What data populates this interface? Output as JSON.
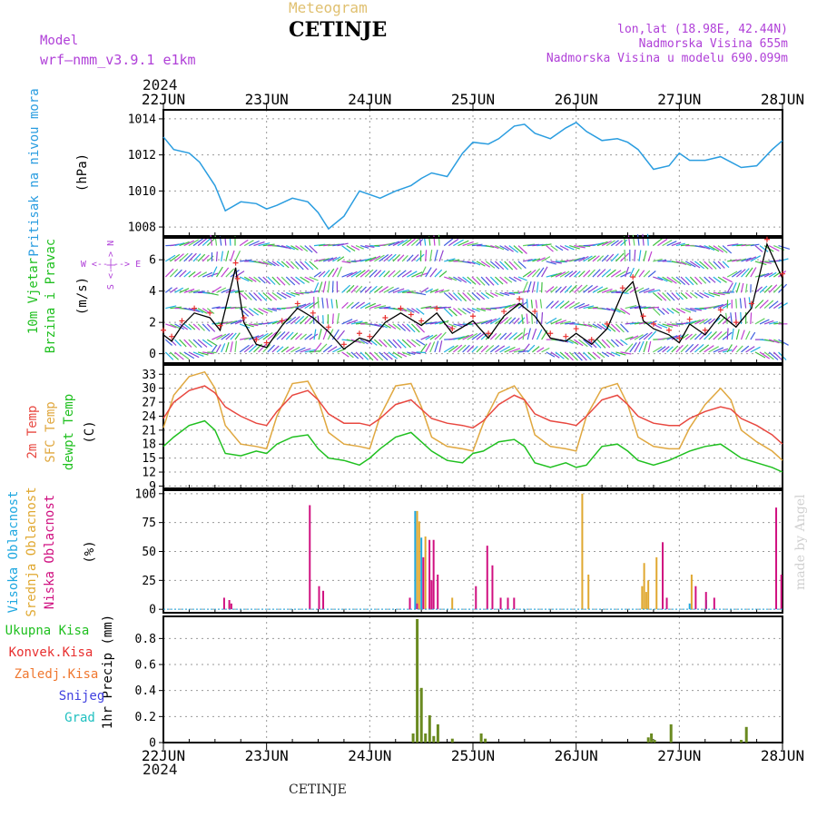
{
  "header": {
    "product": "Meteogram",
    "location": "CETINJE",
    "model_label": "Model",
    "model_name": "wrf–nmm_v3.9.1  e1km",
    "coords": "lon,lat (18.98E, 42.44N)",
    "altitude": "Nadmorska Visina 655m",
    "model_altitude": "Nadmorska Visina u modelu 690.099m"
  },
  "time_axis": {
    "year_label": "2024",
    "ticks": [
      "22JUN",
      "23JUN",
      "24JUN",
      "25JUN",
      "26JUN",
      "27JUN",
      "28JUN"
    ]
  },
  "footer": {
    "location": "CETINJE",
    "credit": "made by Angel"
  },
  "colors": {
    "pressure": "#2a9de0",
    "temp": "#e84840",
    "sfc_temp": "#e0a840",
    "dewpt": "#20c020",
    "high_cloud": "#20a8e0",
    "mid_cloud": "#e0a830",
    "low_cloud": "#d01080",
    "total_precip": "#20c020",
    "conv_precip": "#e83030",
    "frozen_precip": "#f07830",
    "snow": "#4040e0",
    "graupel": "#20c0c0",
    "wind_label": "#20c020",
    "wind_dir": "#b040d8"
  },
  "chart_data": [
    {
      "type": "line",
      "panel": "pressure",
      "ylabel": "Pritisak na nivou mora",
      "unit": "(hPa)",
      "ylim": [
        1007.5,
        1014.5
      ],
      "yticks": [
        1008,
        1010,
        1012,
        1014
      ],
      "grid": true,
      "x_days": [
        0,
        0.1,
        0.25,
        0.35,
        0.5,
        0.6,
        0.75,
        0.9,
        1.0,
        1.1,
        1.25,
        1.4,
        1.5,
        1.6,
        1.75,
        1.9,
        2.0,
        2.1,
        2.25,
        2.4,
        2.5,
        2.6,
        2.75,
        2.9,
        3.0,
        3.15,
        3.25,
        3.4,
        3.5,
        3.6,
        3.75,
        3.9,
        4.0,
        4.1,
        4.25,
        4.4,
        4.5,
        4.6,
        4.75,
        4.9,
        5.0,
        5.1,
        5.25,
        5.4,
        5.5,
        5.6,
        5.75,
        5.9,
        6.0
      ],
      "series": [
        {
          "name": "Pritisak na nivou mora",
          "values": [
            1013.0,
            1012.3,
            1012.1,
            1011.6,
            1010.3,
            1008.9,
            1009.4,
            1009.3,
            1009.0,
            1009.2,
            1009.6,
            1009.4,
            1008.8,
            1007.9,
            1008.6,
            1010.0,
            1009.8,
            1009.6,
            1010.0,
            1010.3,
            1010.7,
            1011.0,
            1010.8,
            1012.1,
            1012.7,
            1012.6,
            1012.9,
            1013.6,
            1013.7,
            1013.2,
            1012.9,
            1013.5,
            1013.8,
            1013.3,
            1012.8,
            1012.9,
            1012.7,
            1012.3,
            1011.2,
            1011.4,
            1012.1,
            1011.7,
            1011.7,
            1011.9,
            1011.6,
            1011.3,
            1011.4,
            1012.3,
            1012.8
          ]
        }
      ]
    },
    {
      "type": "line",
      "panel": "wind",
      "ylabel": "10m Vjetar",
      "ylabel2": "Brzina i Pravac",
      "unit": "(m/s)",
      "direction_legend": "W <--|--> E",
      "direction_legend_v": "S <-|-> N",
      "ylim": [
        -0.6,
        7.4
      ],
      "yticks": [
        0,
        2,
        4,
        6
      ],
      "grid": true,
      "x_days": [
        0,
        0.08,
        0.18,
        0.3,
        0.45,
        0.55,
        0.7,
        0.72,
        0.78,
        0.9,
        1.0,
        1.15,
        1.3,
        1.45,
        1.6,
        1.75,
        1.9,
        2.0,
        2.15,
        2.3,
        2.4,
        2.5,
        2.65,
        2.8,
        3.0,
        3.15,
        3.3,
        3.45,
        3.6,
        3.75,
        3.9,
        4.0,
        4.15,
        4.3,
        4.45,
        4.55,
        4.65,
        4.75,
        4.9,
        5.0,
        5.1,
        5.25,
        5.4,
        5.55,
        5.7,
        5.85,
        6.0
      ],
      "series": [
        {
          "name": "10m Vjetar",
          "values": [
            1.2,
            0.8,
            1.8,
            2.6,
            2.3,
            1.5,
            5.5,
            4.5,
            2.0,
            0.6,
            0.4,
            1.8,
            2.9,
            2.3,
            1.4,
            0.3,
            1.0,
            0.8,
            2.0,
            2.6,
            2.2,
            1.8,
            2.6,
            1.3,
            2.1,
            1.0,
            2.4,
            3.2,
            2.4,
            1.0,
            0.8,
            1.3,
            0.6,
            1.6,
            3.9,
            4.6,
            2.1,
            1.6,
            1.2,
            0.7,
            1.9,
            1.2,
            2.5,
            1.7,
            2.9,
            7.0,
            4.8
          ]
        }
      ]
    },
    {
      "type": "line",
      "panel": "temperature",
      "unit": "(C)",
      "ylim": [
        8.5,
        35
      ],
      "yticks": [
        9,
        12,
        15,
        18,
        21,
        24,
        27,
        30,
        33
      ],
      "grid": true,
      "x_days": [
        0,
        0.1,
        0.25,
        0.4,
        0.5,
        0.6,
        0.75,
        0.9,
        1.0,
        1.1,
        1.25,
        1.4,
        1.5,
        1.6,
        1.75,
        1.9,
        2.0,
        2.1,
        2.25,
        2.4,
        2.5,
        2.6,
        2.75,
        2.9,
        3.0,
        3.1,
        3.25,
        3.4,
        3.5,
        3.6,
        3.75,
        3.9,
        4.0,
        4.1,
        4.25,
        4.4,
        4.5,
        4.6,
        4.75,
        4.9,
        5.0,
        5.1,
        5.25,
        5.4,
        5.5,
        5.6,
        5.75,
        5.9,
        6.0
      ],
      "series": [
        {
          "name": "2m Temp",
          "values": [
            23.5,
            27.0,
            29.5,
            30.5,
            29.0,
            26.0,
            24.0,
            22.5,
            22.0,
            25.0,
            28.5,
            29.5,
            27.5,
            24.5,
            22.5,
            22.5,
            22.0,
            23.5,
            26.5,
            27.5,
            25.5,
            23.5,
            22.5,
            22.0,
            21.5,
            23.0,
            26.5,
            28.5,
            27.5,
            24.5,
            23.0,
            22.5,
            22.0,
            24.0,
            27.5,
            28.5,
            26.5,
            24.0,
            22.5,
            22.0,
            22.0,
            23.5,
            25.0,
            26.0,
            25.5,
            23.5,
            22.0,
            20.0,
            18.0
          ]
        },
        {
          "name": "SFC Temp",
          "values": [
            21.5,
            28.5,
            32.5,
            33.5,
            30.0,
            22.0,
            18.0,
            17.5,
            17.0,
            24.0,
            31.0,
            31.5,
            27.5,
            20.5,
            18.0,
            17.5,
            17.0,
            24.0,
            30.5,
            31.0,
            26.0,
            19.5,
            17.5,
            17.0,
            16.5,
            22.5,
            29.0,
            30.5,
            27.5,
            20.0,
            17.5,
            17.0,
            16.5,
            24.0,
            30.0,
            31.0,
            26.5,
            19.5,
            17.5,
            17.0,
            17.0,
            21.5,
            26.5,
            30.0,
            27.5,
            21.0,
            18.5,
            16.5,
            14.5
          ]
        },
        {
          "name": "dewpt Temp",
          "values": [
            17.5,
            19.5,
            22.0,
            23.0,
            21.0,
            16.0,
            15.5,
            16.5,
            16.0,
            18.0,
            19.5,
            20.0,
            17.0,
            15.0,
            14.5,
            13.5,
            15.0,
            17.0,
            19.5,
            20.5,
            18.5,
            16.5,
            14.5,
            14.0,
            16.0,
            16.5,
            18.5,
            19.0,
            17.5,
            14.0,
            13.0,
            14.0,
            13.0,
            13.5,
            17.5,
            18.0,
            16.5,
            14.5,
            13.5,
            14.5,
            15.5,
            16.5,
            17.5,
            18.0,
            16.5,
            15.0,
            14.0,
            13.0,
            12.0
          ]
        }
      ]
    },
    {
      "type": "bar",
      "panel": "cloud",
      "ylabel": "Visoka Oblacnost",
      "ylabel2": "Srednja Oblacnost",
      "ylabel3": "Niska Oblacnost",
      "unit": "(%)",
      "ylim": [
        -3,
        103
      ],
      "yticks": [
        0,
        25,
        50,
        75,
        100
      ],
      "grid": true,
      "x_days": [
        0.55,
        0.6,
        0.62,
        1.38,
        1.47,
        1.51,
        2.35,
        2.42,
        2.44,
        2.46,
        2.48,
        2.5,
        2.52,
        2.54,
        2.56,
        2.58,
        2.6,
        2.62,
        2.64,
        2.66,
        2.78,
        2.84,
        2.92,
        2.95,
        2.97,
        2.99,
        3.05,
        3.1,
        3.12,
        3.15,
        3.18,
        3.23,
        3.3,
        3.36,
        3.5,
        3.62,
        3.7,
        4.0,
        4.04,
        4.1,
        4.58,
        4.62,
        4.64,
        4.66,
        4.68,
        4.72,
        4.76,
        4.8,
        4.84,
        4.88,
        4.92,
        4.94,
        5.1,
        5.12,
        5.18,
        5.22,
        5.26,
        5.3,
        5.34,
        5.4,
        5.9,
        5.95
      ],
      "series": [
        {
          "name": "Visoka Oblacnost",
          "values": [
            0,
            0,
            0,
            0,
            0,
            0,
            0,
            0,
            85,
            0,
            0,
            62,
            0,
            0,
            0,
            0,
            0,
            0,
            0,
            0,
            0,
            0,
            0,
            0,
            0,
            0,
            0,
            0,
            0,
            0,
            0,
            0,
            0,
            0,
            0,
            0,
            0,
            0,
            0,
            0,
            0,
            0,
            0,
            0,
            0,
            0,
            0,
            0,
            0,
            0,
            0,
            0,
            5,
            0,
            0,
            0,
            8,
            0,
            0,
            0,
            0,
            0
          ]
        },
        {
          "name": "Srednja Oblacnost",
          "values": [
            0,
            0,
            5,
            0,
            0,
            0,
            0,
            0,
            85,
            76,
            0,
            0,
            63,
            0,
            0,
            0,
            0,
            0,
            0,
            0,
            10,
            0,
            0,
            0,
            0,
            0,
            0,
            0,
            0,
            0,
            0,
            0,
            0,
            0,
            0,
            0,
            0,
            0,
            100,
            30,
            0,
            20,
            40,
            15,
            25,
            0,
            45,
            0,
            0,
            0,
            0,
            0,
            30,
            0,
            0,
            0,
            0,
            0,
            0,
            0,
            0,
            0
          ]
        },
        {
          "name": "Niska Oblacnost",
          "values": [
            10,
            8,
            5,
            90,
            20,
            16,
            10,
            5,
            0,
            0,
            45,
            0,
            0,
            60,
            25,
            60,
            0,
            30,
            0,
            0,
            0,
            0,
            0,
            0,
            0,
            20,
            0,
            55,
            0,
            38,
            0,
            10,
            10,
            10,
            0,
            0,
            0,
            0,
            0,
            0,
            0,
            0,
            0,
            0,
            0,
            0,
            0,
            58,
            10,
            0,
            0,
            0,
            0,
            20,
            0,
            15,
            0,
            10,
            0,
            0,
            88,
            30
          ]
        }
      ]
    },
    {
      "type": "bar",
      "panel": "precip",
      "ylabel": "1hr Precip",
      "unit": "(mm)",
      "legend": [
        "Ukupna  Kisa",
        "Konvek.Kisa",
        "Zaledj.Kisa",
        "Snijeg",
        "Grad"
      ],
      "ylim": [
        0,
        0.97
      ],
      "yticks": [
        0,
        0.2,
        0.4,
        0.6,
        0.8
      ],
      "grid": true,
      "x_days": [
        2.42,
        2.46,
        2.5,
        2.54,
        2.58,
        2.62,
        2.66,
        2.8,
        3.08,
        3.12,
        4.7,
        4.73,
        4.76,
        4.92,
        5.6,
        5.65
      ],
      "series": [
        {
          "name": "Ukupna  Kisa",
          "values": [
            0.07,
            0.95,
            0.42,
            0.07,
            0.21,
            0.05,
            0.14,
            0.03,
            0.07,
            0.03,
            0.04,
            0.07,
            0.02,
            0.14,
            0.02,
            0.12
          ]
        }
      ]
    }
  ]
}
